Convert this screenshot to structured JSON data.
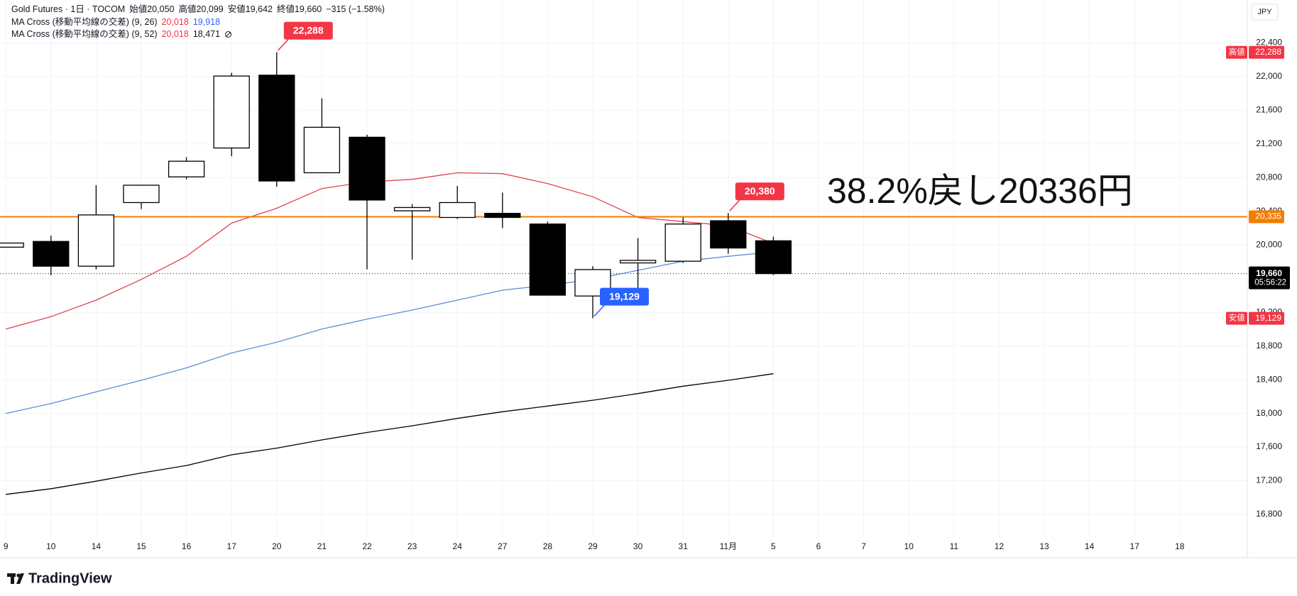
{
  "chart_data": {
    "type": "candlestick",
    "title": "Gold Futures · 1日 · TOCOM",
    "quote": [
      {
        "name": "始値",
        "value": 20050,
        "label": "20,050"
      },
      {
        "name": "高値",
        "value": 20099,
        "label": "20,099"
      },
      {
        "name": "安値",
        "value": 19642,
        "label": "19,642"
      },
      {
        "name": "終値",
        "value": 19660,
        "label": "19,660"
      }
    ],
    "change": "−315 (−1.58%)",
    "indicators": [
      {
        "name": "MA Cross (移動平均線の交差) (9, 26)",
        "readouts": [
          {
            "value": 20018,
            "label": "20,018",
            "color": "#f23645"
          },
          {
            "value": 19918,
            "label": "19,918",
            "color": "#2962ff"
          }
        ]
      },
      {
        "name": "MA Cross (移動平均線の交差) (9, 52)",
        "readouts": [
          {
            "value": 20018,
            "label": "20,018",
            "color": "#f23645"
          },
          {
            "value": 18471,
            "label": "18,471",
            "color": "#131722"
          }
        ]
      }
    ],
    "categories": [
      "9",
      "10",
      "14",
      "15",
      "16",
      "17",
      "20",
      "21",
      "22",
      "23",
      "24",
      "27",
      "28",
      "29",
      "30",
      "31",
      "11月",
      "5",
      "6",
      "7",
      "10",
      "11",
      "12",
      "13",
      "14",
      "17",
      "18"
    ],
    "open": [
      19974,
      20042,
      19748,
      20504,
      20809,
      21152,
      22017,
      20858,
      21280,
      20406,
      20327,
      20376,
      20249,
      19394,
      19787,
      19807,
      20288,
      20050,
      null,
      null,
      null,
      null,
      null,
      null,
      null,
      null,
      null
    ],
    "high": [
      20023,
      20111,
      20710,
      20710,
      21044,
      22046,
      22288,
      21742,
      21310,
      20485,
      20701,
      20622,
      20278,
      19748,
      20082,
      20327,
      20380,
      20099,
      null,
      null,
      null,
      null,
      null,
      null,
      null,
      null,
      null
    ],
    "low": [
      19974,
      19640,
      19709,
      20426,
      20779,
      21054,
      20691,
      20858,
      19709,
      19826,
      20308,
      20200,
      19404,
      19129,
      19473,
      19787,
      19895,
      19642,
      null,
      null,
      null,
      null,
      null,
      null,
      null,
      null,
      null
    ],
    "close": [
      20023,
      19748,
      20357,
      20710,
      20995,
      22007,
      20760,
      21398,
      20534,
      20445,
      20504,
      20327,
      19404,
      19708,
      19817,
      20249,
      19964,
      19660,
      null,
      null,
      null,
      null,
      null,
      null,
      null,
      null,
      null
    ],
    "up_color": "#ffffff",
    "down_color": "#000000",
    "series": [
      {
        "color": "#e0434b",
        "values": [
          19001,
          19149,
          19345,
          19591,
          19866,
          20259,
          20436,
          20671,
          20750,
          20779,
          20858,
          20848,
          20730,
          20573,
          20327,
          20278,
          20229,
          20018,
          null,
          null,
          null,
          null,
          null,
          null,
          null,
          null,
          null
        ]
      },
      {
        "color": "#5b8fd6",
        "values": [
          17999,
          18117,
          18255,
          18393,
          18540,
          18717,
          18844,
          19001,
          19119,
          19227,
          19345,
          19463,
          19522,
          19591,
          19699,
          19807,
          19866,
          19918,
          null,
          null,
          null,
          null,
          null,
          null,
          null,
          null,
          null
        ]
      },
      {
        "color": "#000000",
        "values": [
          17037,
          17105,
          17194,
          17292,
          17380,
          17508,
          17587,
          17685,
          17773,
          17852,
          17940,
          18019,
          18087,
          18156,
          18235,
          18323,
          18393,
          18471,
          null,
          null,
          null,
          null,
          null,
          null,
          null,
          null,
          null
        ]
      }
    ],
    "ylim": [
      16530,
      22910
    ],
    "yticks": [
      {
        "value": 16800,
        "label": "16,800"
      },
      {
        "value": 17200,
        "label": "17,200"
      },
      {
        "value": 17600,
        "label": "17,600"
      },
      {
        "value": 18000,
        "label": "18,000"
      },
      {
        "value": 18400,
        "label": "18,400"
      },
      {
        "value": 18800,
        "label": "18,800"
      },
      {
        "value": 19200,
        "label": "19,200"
      },
      {
        "value": 19600,
        "label": "19,600"
      },
      {
        "value": 20000,
        "label": "20,000"
      },
      {
        "value": 20400,
        "label": "20,400"
      },
      {
        "value": 20800,
        "label": "20,800"
      },
      {
        "value": 21200,
        "label": "21,200"
      },
      {
        "value": 21600,
        "label": "21,600"
      },
      {
        "value": 22000,
        "label": "22,000"
      },
      {
        "value": 22400,
        "label": "22,400"
      }
    ],
    "grid": true,
    "hline": {
      "value": 20335,
      "label": "20,335",
      "color": "#f57c00"
    },
    "annotation": "38.2%戻し20336円",
    "last_price": {
      "value": 19660,
      "label": "19,660",
      "countdown": "05:56:22"
    },
    "high_badge": {
      "tag": "高値",
      "value": 22288,
      "label": "22,288"
    },
    "low_badge": {
      "tag": "安値",
      "value": 19129,
      "label": "19,129"
    },
    "callouts": [
      {
        "value": 22288,
        "label": "22,288",
        "color": "#f23645"
      },
      {
        "value": 20380,
        "label": "20,380",
        "color": "#f23645"
      },
      {
        "value": 19129,
        "label": "19,129",
        "color": "#2962ff"
      }
    ],
    "currency": "JPY",
    "watermark": "TradingView"
  }
}
